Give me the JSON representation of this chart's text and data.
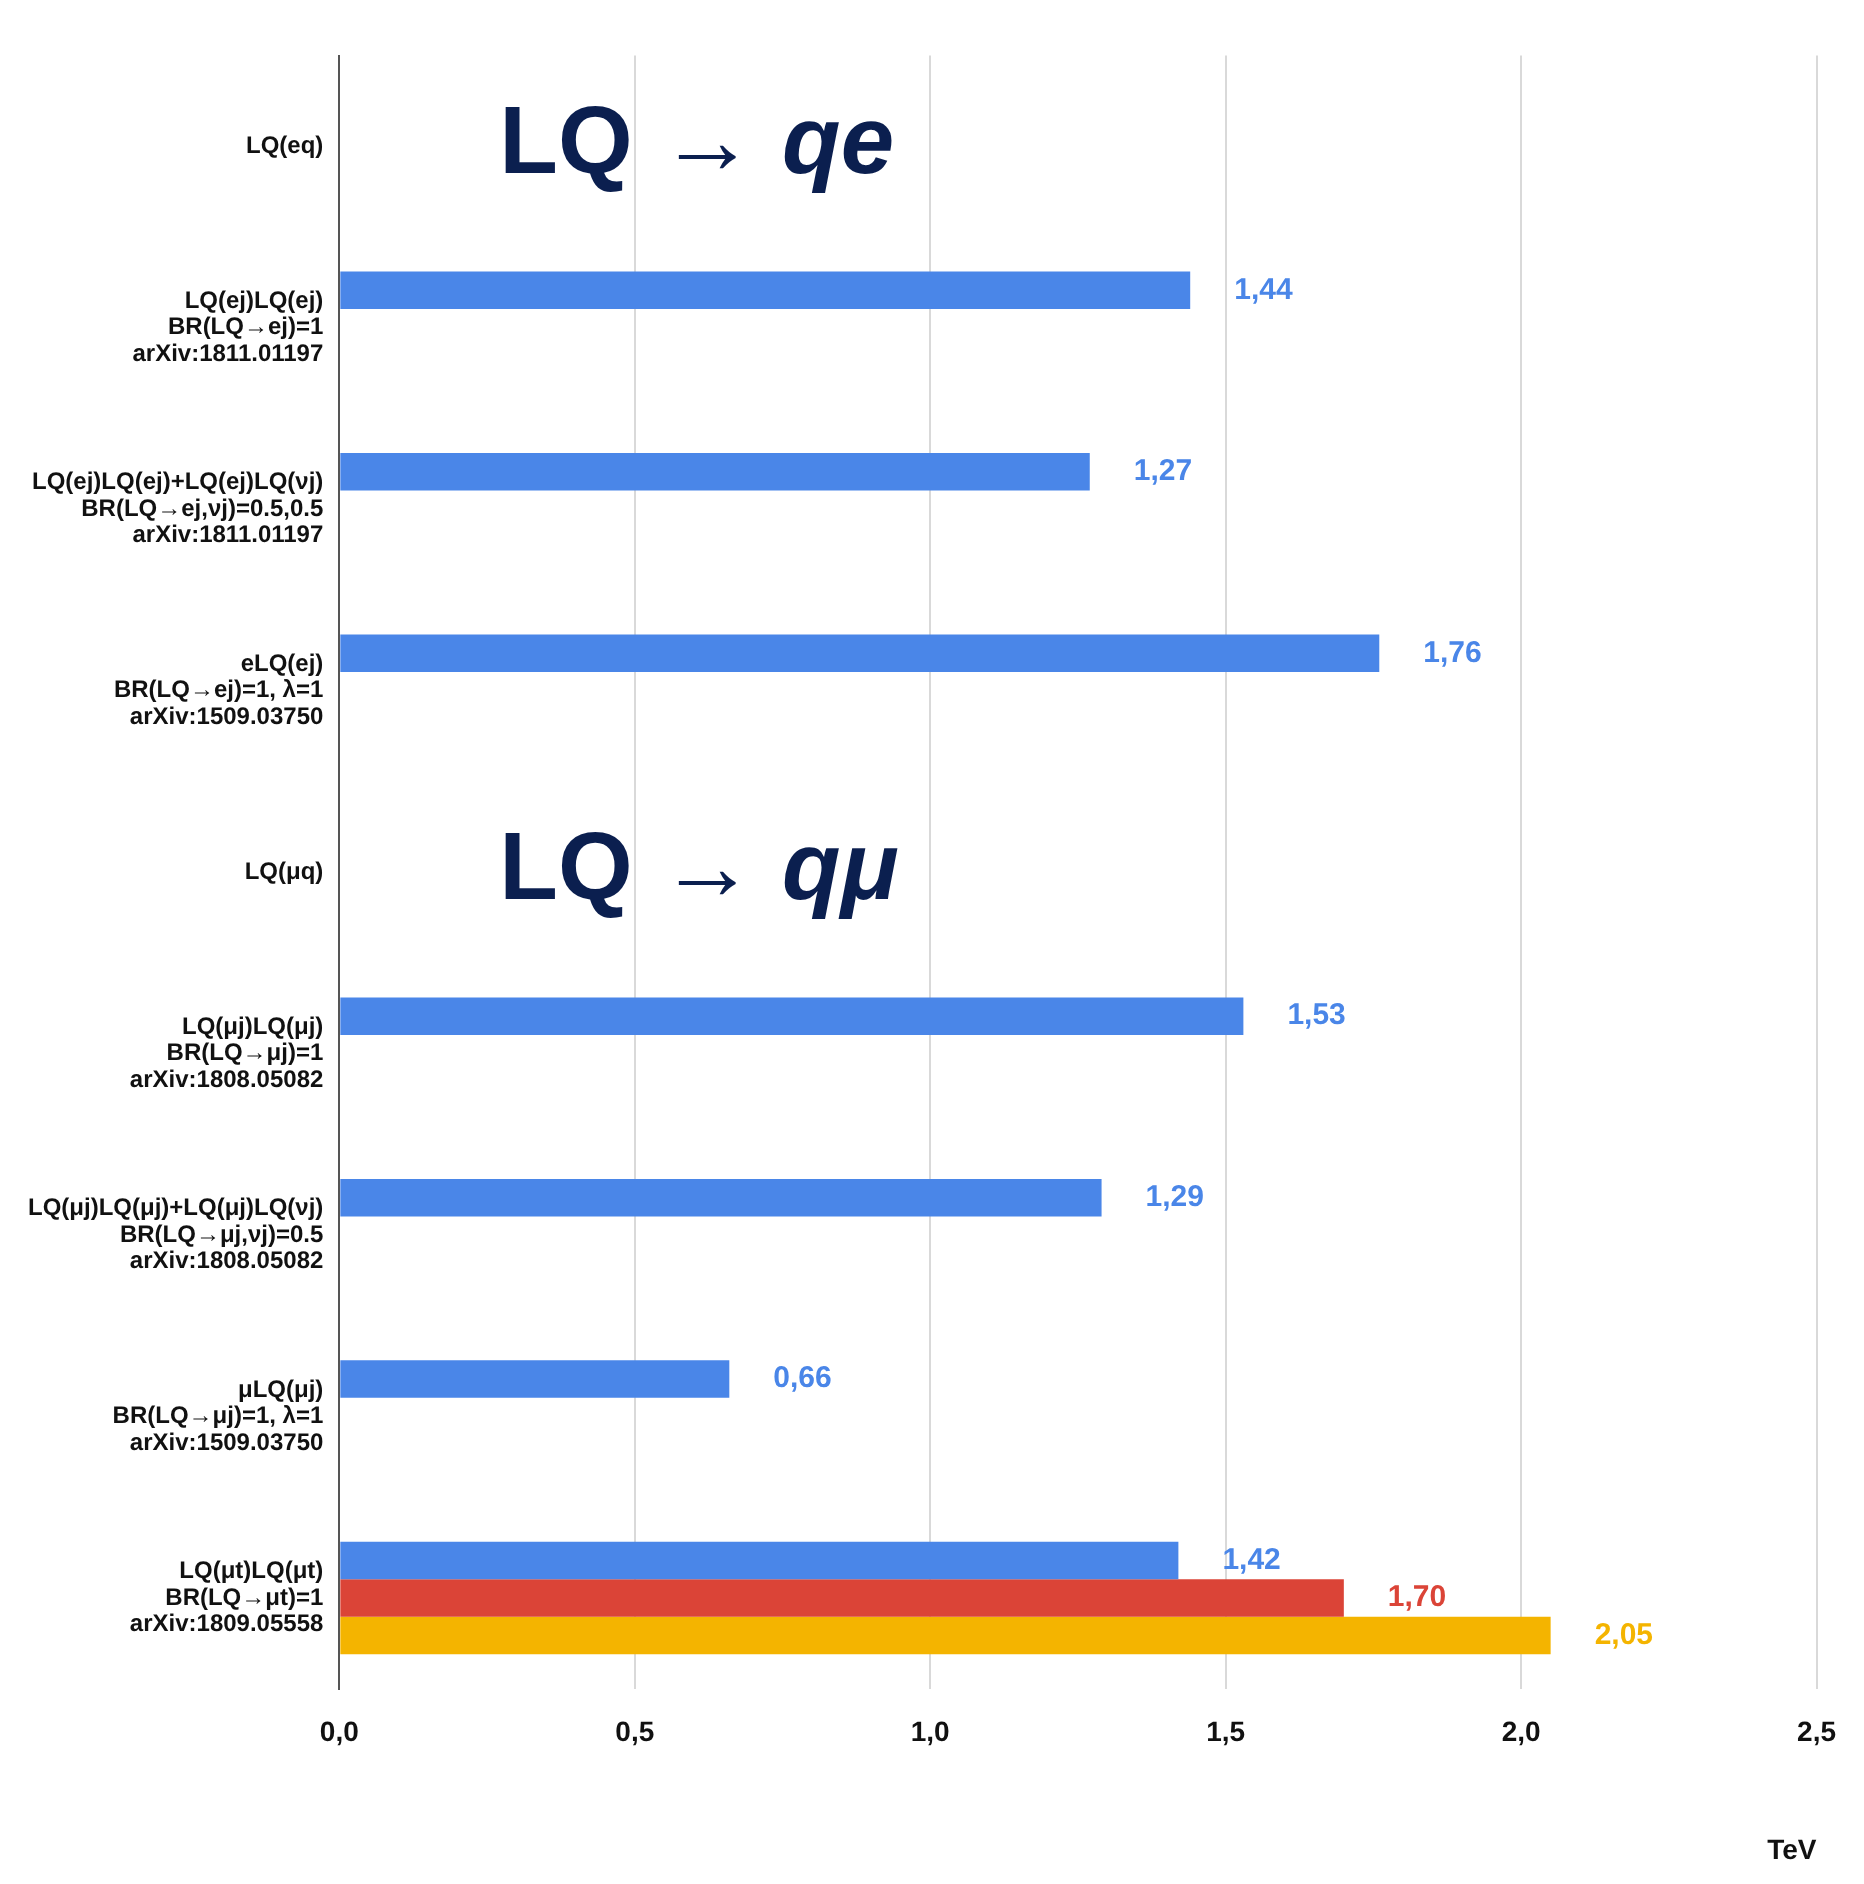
{
  "chart_data": {
    "type": "bar",
    "orientation": "horizontal",
    "xlabel": "TeV",
    "categories": [
      "LQ(eq)",
      "LQ(ej)LQ(ej)\nBR(LQ→ej)=1\narXiv:1811.01197",
      "LQ(ej)LQ(ej)+LQ(ej)LQ(νj)\nBR(LQ→ej,νj)=0.5,0.5\narXiv:1811.01197",
      "eLQ(ej)\nBR(LQ→ej)=1, λ=1\narXiv:1509.03750",
      "LQ(μq)",
      "LQ(μj)LQ(μj)\nBR(LQ→μj)=1\narXiv:1808.05082",
      "LQ(μj)LQ(μj)+LQ(μj)LQ(νj)\nBR(LQ→μj,νj)=0.5\narXiv:1808.05082",
      "μLQ(μj)\nBR(LQ→μj)=1, λ=1\narXiv:1509.03750",
      "LQ(μt)LQ(μt)\nBR(LQ→μt)=1\narXiv:1809.05558"
    ],
    "series": [
      {
        "color": "#4a86e8",
        "values": [
          null,
          1.44,
          1.27,
          1.76,
          null,
          1.53,
          1.29,
          0.66,
          1.42
        ],
        "value_labels": [
          null,
          "1,44",
          "1,27",
          "1,76",
          null,
          "1,53",
          "1,29",
          "0,66",
          "1,42"
        ]
      },
      {
        "color": "#db4437",
        "values": [
          null,
          null,
          null,
          null,
          null,
          null,
          null,
          null,
          1.7
        ],
        "value_labels": [
          null,
          null,
          null,
          null,
          null,
          null,
          null,
          null,
          "1,70"
        ]
      },
      {
        "color": "#f4b400",
        "values": [
          null,
          null,
          null,
          null,
          null,
          null,
          null,
          null,
          2.05
        ],
        "value_labels": [
          null,
          null,
          null,
          null,
          null,
          null,
          null,
          null,
          "2,05"
        ]
      }
    ],
    "xlim": [
      0,
      2.5
    ],
    "xticks": [
      {
        "value": 0,
        "label": "0,0"
      },
      {
        "value": 0.5,
        "label": "0,5"
      },
      {
        "value": 1,
        "label": "1,0"
      },
      {
        "value": 1.5,
        "label": "1,5"
      },
      {
        "value": 2,
        "label": "2,0"
      },
      {
        "value": 2.5,
        "label": "2,5"
      }
    ],
    "grid": "x",
    "legend": false,
    "annotations": [
      "LQ → qe",
      "LQ → qμ"
    ]
  }
}
